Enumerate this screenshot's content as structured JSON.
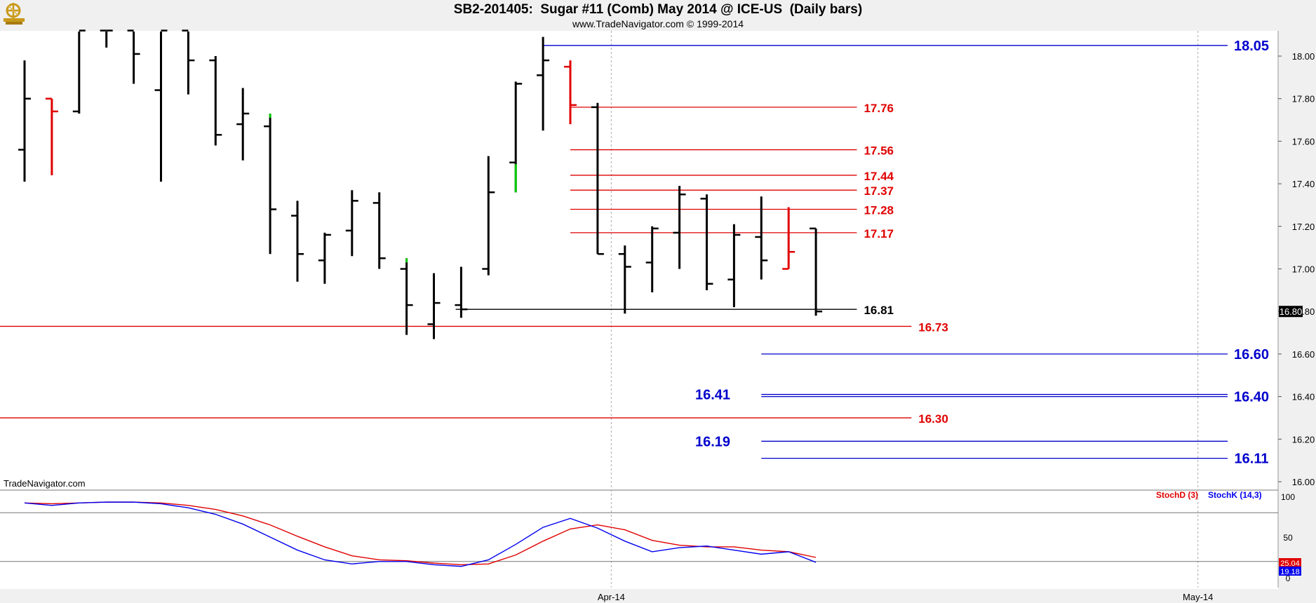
{
  "header": {
    "title": "SB2-201405:  Sugar #11 (Comb) May 2014 @ ICE-US  (Daily bars)",
    "subtitle": "www.TradeNavigator.com © 1999-2014"
  },
  "watermark": "TradeNavigator.com",
  "colors": {
    "background": "#ffffff",
    "frame": "#f0f0f0",
    "bar": "#000000",
    "bar_red": "#e00000",
    "bar_green": "#00cc00",
    "level_red": "#e00000",
    "level_blue": "#0000cc",
    "level_black": "#000000",
    "stoch_d": "#e00000",
    "stoch_k": "#0000ee"
  },
  "chart_data": [
    {
      "type": "ohlc",
      "title": "SB2-201405:  Sugar #11 (Comb) May 2014 @ ICE-US  (Daily bars)",
      "ylim": [
        15.95,
        18.12
      ],
      "y_ticks": [
        "16.00",
        "16.20",
        "16.40",
        "16.60",
        "16.80",
        "17.00",
        "17.20",
        "17.40",
        "17.60",
        "17.80",
        "18.00"
      ],
      "x_ticks": [
        {
          "label": "Apr-14",
          "bar_index": 21.5
        },
        {
          "label": "May-14",
          "bar_index": 43
        }
      ],
      "last_price": {
        "value": 16.8,
        "label": "16.80"
      },
      "bars": [
        {
          "o": 17.56,
          "h": 17.98,
          "l": 17.41,
          "c": 17.8,
          "color": "black"
        },
        {
          "o": 17.8,
          "h": 17.8,
          "l": 17.44,
          "c": 17.74,
          "color": "red"
        },
        {
          "o": 17.74,
          "h": 18.12,
          "l": 17.73,
          "c": 18.12,
          "color": "black"
        },
        {
          "o": 18.12,
          "h": 18.12,
          "l": 18.04,
          "c": 18.12,
          "color": "black"
        },
        {
          "o": 18.12,
          "h": 18.12,
          "l": 17.87,
          "c": 18.01,
          "color": "black"
        },
        {
          "o": 17.84,
          "h": 18.12,
          "l": 17.41,
          "c": 18.12,
          "color": "black"
        },
        {
          "o": 18.12,
          "h": 18.12,
          "l": 17.82,
          "c": 17.98,
          "color": "black"
        },
        {
          "o": 17.98,
          "h": 18.0,
          "l": 17.58,
          "c": 17.63,
          "color": "black"
        },
        {
          "o": 17.68,
          "h": 17.85,
          "l": 17.51,
          "c": 17.73,
          "color": "black"
        },
        {
          "o": 17.67,
          "h": 17.73,
          "l": 17.07,
          "c": 17.28,
          "color": "black",
          "high_color": "green"
        },
        {
          "o": 17.25,
          "h": 17.32,
          "l": 16.94,
          "c": 17.07,
          "color": "black"
        },
        {
          "o": 17.04,
          "h": 17.17,
          "l": 16.93,
          "c": 17.16,
          "color": "black"
        },
        {
          "o": 17.18,
          "h": 17.37,
          "l": 17.06,
          "c": 17.32,
          "color": "black"
        },
        {
          "o": 17.31,
          "h": 17.36,
          "l": 17.0,
          "c": 17.05,
          "color": "black"
        },
        {
          "o": 17.0,
          "h": 17.05,
          "l": 16.69,
          "c": 16.83,
          "color": "black",
          "high_color": "green"
        },
        {
          "o": 16.74,
          "h": 16.98,
          "l": 16.67,
          "c": 16.84,
          "color": "black"
        },
        {
          "o": 16.83,
          "h": 17.01,
          "l": 16.77,
          "c": 16.81,
          "color": "black"
        },
        {
          "o": 17.0,
          "h": 17.53,
          "l": 16.97,
          "c": 17.36,
          "color": "black"
        },
        {
          "o": 17.5,
          "h": 17.88,
          "l": 17.36,
          "c": 17.87,
          "color": "black",
          "low_color": "green"
        },
        {
          "o": 17.91,
          "h": 18.09,
          "l": 17.65,
          "c": 17.98,
          "color": "black"
        },
        {
          "o": 17.95,
          "h": 17.98,
          "l": 17.68,
          "c": 17.77,
          "color": "red"
        },
        {
          "o": 17.76,
          "h": 17.78,
          "l": 17.07,
          "c": 17.07,
          "color": "black"
        },
        {
          "o": 17.07,
          "h": 17.11,
          "l": 16.79,
          "c": 17.01,
          "color": "black"
        },
        {
          "o": 17.03,
          "h": 17.2,
          "l": 16.89,
          "c": 17.19,
          "color": "black"
        },
        {
          "o": 17.17,
          "h": 17.39,
          "l": 17.0,
          "c": 17.35,
          "color": "black"
        },
        {
          "o": 17.33,
          "h": 17.35,
          "l": 16.9,
          "c": 16.93,
          "color": "black"
        },
        {
          "o": 16.95,
          "h": 17.21,
          "l": 16.82,
          "c": 17.16,
          "color": "black"
        },
        {
          "o": 17.15,
          "h": 17.34,
          "l": 16.95,
          "c": 17.04,
          "color": "black"
        },
        {
          "o": 17.0,
          "h": 17.29,
          "l": 17.0,
          "c": 17.08,
          "color": "red"
        },
        {
          "o": 17.19,
          "h": 17.19,
          "l": 16.78,
          "c": 16.8,
          "color": "black"
        }
      ],
      "levels": [
        {
          "value": 18.05,
          "label": "18.05",
          "color": "blue",
          "from_bar": 19,
          "to": "axis",
          "label_pos": "right"
        },
        {
          "value": 17.76,
          "label": "17.76",
          "color": "red",
          "from_bar": 20,
          "to_bar": 30.5,
          "label_pos": "end"
        },
        {
          "value": 17.56,
          "label": "17.56",
          "color": "red",
          "from_bar": 20,
          "to_bar": 30.5,
          "label_pos": "end"
        },
        {
          "value": 17.44,
          "label": "17.44",
          "color": "red",
          "from_bar": 20,
          "to_bar": 30.5,
          "label_pos": "end"
        },
        {
          "value": 17.37,
          "label": "17.37",
          "color": "red",
          "from_bar": 20,
          "to_bar": 30.5,
          "label_pos": "end"
        },
        {
          "value": 17.28,
          "label": "17.28",
          "color": "red",
          "from_bar": 20,
          "to_bar": 30.5,
          "label_pos": "end"
        },
        {
          "value": 17.17,
          "label": "17.17",
          "color": "red",
          "from_bar": 20,
          "to_bar": 30.5,
          "label_pos": "end"
        },
        {
          "value": 16.81,
          "label": "16.81",
          "color": "black",
          "from_bar": 15.8,
          "to_bar": 30.5,
          "label_pos": "end"
        },
        {
          "value": 16.73,
          "label": "16.73",
          "color": "red",
          "from_bar": -1,
          "to_bar": 32.5,
          "label_pos": "end"
        },
        {
          "value": 16.6,
          "label": "16.60",
          "color": "blue",
          "from_bar": 27,
          "to": "axis",
          "label_pos": "right"
        },
        {
          "value": 16.41,
          "label": "16.41",
          "color": "blue",
          "from_bar": 27,
          "to": "axis",
          "label_pos": "left"
        },
        {
          "value": 16.4,
          "label": "16.40",
          "color": "blue",
          "from_bar": 27,
          "to": "axis",
          "label_pos": "right"
        },
        {
          "value": 16.3,
          "label": "16.30",
          "color": "red",
          "from_bar": -1,
          "to_bar": 32.5,
          "label_pos": "end"
        },
        {
          "value": 16.19,
          "label": "16.19",
          "color": "blue",
          "from_bar": 27,
          "to": "axis",
          "label_pos": "left"
        },
        {
          "value": 16.11,
          "label": "16.11",
          "color": "blue",
          "from_bar": 27,
          "to": "axis",
          "label_pos": "right"
        }
      ]
    },
    {
      "type": "line",
      "title": "",
      "ylim": [
        0,
        100
      ],
      "y_ticks": [
        "0",
        "50",
        "100"
      ],
      "reference_lines": [
        80,
        20
      ],
      "series": [
        {
          "name": "StochD (3)",
          "color": "red",
          "last_label": "25.04",
          "values": [
            92,
            91,
            92,
            93,
            93,
            92,
            89,
            84,
            76,
            65,
            51,
            38,
            27,
            22,
            21,
            18,
            16,
            17,
            28,
            45,
            60,
            65,
            59,
            46,
            40,
            38,
            38,
            34,
            32,
            25
          ]
        },
        {
          "name": "StochK (14,3)",
          "color": "blue",
          "last_label": "19.18",
          "values": [
            92,
            89,
            92,
            93,
            93,
            91,
            86,
            78,
            66,
            50,
            34,
            22,
            17,
            20,
            20,
            16,
            14,
            22,
            41,
            62,
            73,
            61,
            45,
            32,
            37,
            39,
            34,
            29,
            32,
            19
          ]
        }
      ]
    }
  ]
}
